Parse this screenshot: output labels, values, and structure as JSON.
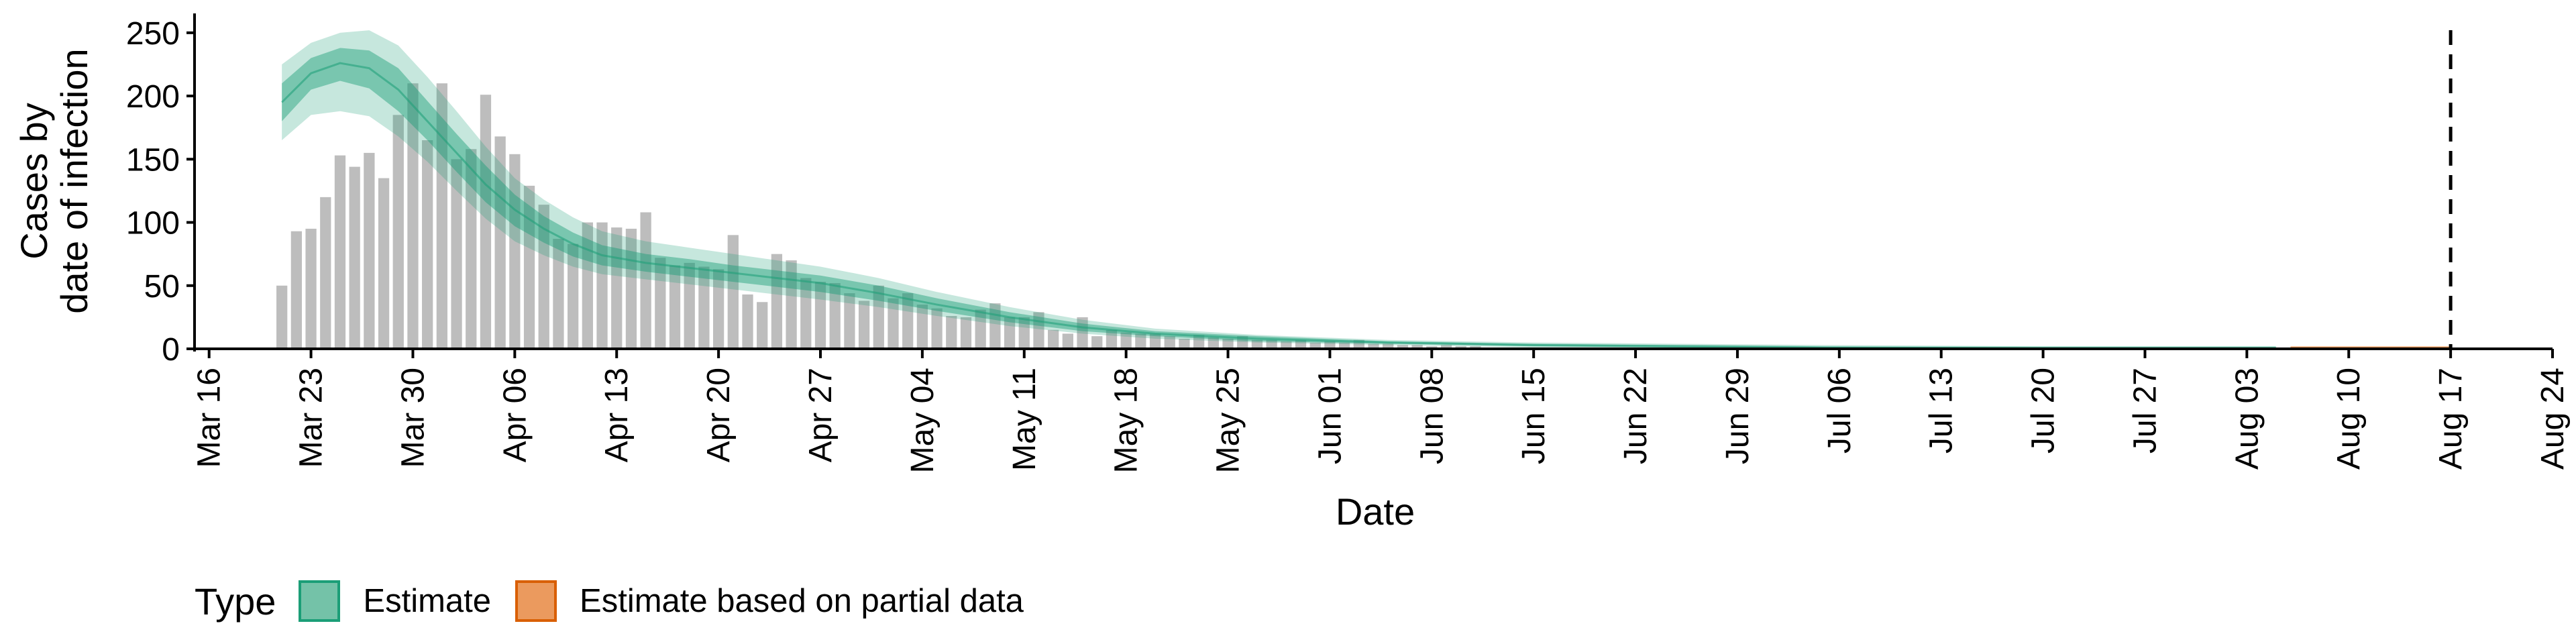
{
  "chart_data": {
    "type": "bar",
    "xlabel": "Date",
    "ylabel_lines": [
      "Cases by",
      "date of infection"
    ],
    "ylim": [
      0,
      260
    ],
    "yticks": [
      0,
      50,
      100,
      150,
      200,
      250
    ],
    "xlim": [
      "2020-03-15",
      "2020-08-24"
    ],
    "xticks": [
      {
        "date": "2020-03-16",
        "label": "Mar 16"
      },
      {
        "date": "2020-03-23",
        "label": "Mar 23"
      },
      {
        "date": "2020-03-30",
        "label": "Mar 30"
      },
      {
        "date": "2020-04-06",
        "label": "Apr 06"
      },
      {
        "date": "2020-04-13",
        "label": "Apr 13"
      },
      {
        "date": "2020-04-20",
        "label": "Apr 20"
      },
      {
        "date": "2020-04-27",
        "label": "Apr 27"
      },
      {
        "date": "2020-05-04",
        "label": "May 04"
      },
      {
        "date": "2020-05-11",
        "label": "May 11"
      },
      {
        "date": "2020-05-18",
        "label": "May 18"
      },
      {
        "date": "2020-05-25",
        "label": "May 25"
      },
      {
        "date": "2020-06-01",
        "label": "Jun 01"
      },
      {
        "date": "2020-06-08",
        "label": "Jun 08"
      },
      {
        "date": "2020-06-15",
        "label": "Jun 15"
      },
      {
        "date": "2020-06-22",
        "label": "Jun 22"
      },
      {
        "date": "2020-06-29",
        "label": "Jun 29"
      },
      {
        "date": "2020-07-06",
        "label": "Jul 06"
      },
      {
        "date": "2020-07-13",
        "label": "Jul 13"
      },
      {
        "date": "2020-07-20",
        "label": "Jul 20"
      },
      {
        "date": "2020-07-27",
        "label": "Jul 27"
      },
      {
        "date": "2020-08-03",
        "label": "Aug 03"
      },
      {
        "date": "2020-08-10",
        "label": "Aug 10"
      },
      {
        "date": "2020-08-17",
        "label": "Aug 17"
      },
      {
        "date": "2020-08-24",
        "label": "Aug 24"
      }
    ],
    "vline_date": "2020-08-17",
    "bars_start_date": "2020-03-21",
    "bar_values": [
      50,
      93,
      95,
      120,
      153,
      144,
      155,
      135,
      185,
      210,
      165,
      210,
      150,
      158,
      201,
      168,
      154,
      129,
      114,
      87,
      83,
      100,
      100,
      96,
      95,
      108,
      72,
      66,
      68,
      65,
      63,
      90,
      43,
      37,
      75,
      70,
      56,
      53,
      52,
      44,
      38,
      50,
      40,
      44,
      35,
      32,
      26,
      25,
      31,
      36,
      25,
      25,
      29,
      15,
      12,
      25,
      10,
      15,
      13,
      12,
      12,
      10,
      8,
      11,
      9,
      8,
      10,
      7,
      7,
      6,
      7,
      5,
      6,
      5,
      7,
      4,
      4,
      3,
      3,
      2,
      3,
      2,
      2,
      1,
      1,
      1,
      0,
      1,
      1,
      0
    ],
    "series": [
      {
        "name": "Estimate",
        "color": "#1b9e77",
        "dates": [
          "2020-03-21",
          "2020-03-23",
          "2020-03-25",
          "2020-03-27",
          "2020-03-29",
          "2020-03-31",
          "2020-04-02",
          "2020-04-04",
          "2020-04-06",
          "2020-04-08",
          "2020-04-10",
          "2020-04-12",
          "2020-04-15",
          "2020-04-18",
          "2020-04-21",
          "2020-04-24",
          "2020-04-27",
          "2020-05-01",
          "2020-05-05",
          "2020-05-10",
          "2020-05-15",
          "2020-05-20",
          "2020-05-27",
          "2020-06-05",
          "2020-06-15",
          "2020-06-25",
          "2020-07-05",
          "2020-07-20",
          "2020-08-05"
        ],
        "median": [
          195,
          218,
          226,
          222,
          205,
          180,
          155,
          130,
          110,
          95,
          83,
          74,
          68,
          64,
          60,
          56,
          52,
          44,
          35,
          25,
          17,
          12,
          8,
          5,
          3,
          2,
          1,
          1,
          1
        ],
        "lower50": [
          180,
          205,
          212,
          206,
          188,
          165,
          140,
          116,
          97,
          84,
          73,
          66,
          61,
          57,
          53,
          49,
          45,
          38,
          30,
          21,
          14,
          10,
          6,
          4,
          2,
          1,
          1,
          0,
          0
        ],
        "upper50": [
          210,
          230,
          238,
          236,
          222,
          196,
          170,
          145,
          122,
          105,
          92,
          82,
          75,
          71,
          66,
          62,
          58,
          50,
          40,
          29,
          20,
          14,
          10,
          6,
          4,
          3,
          2,
          1,
          1
        ],
        "lower90": [
          165,
          185,
          188,
          184,
          168,
          148,
          125,
          103,
          85,
          74,
          65,
          59,
          55,
          51,
          47,
          43,
          39,
          33,
          26,
          18,
          12,
          8,
          5,
          3,
          1,
          1,
          0,
          0,
          0
        ],
        "upper90": [
          225,
          242,
          250,
          252,
          240,
          215,
          188,
          160,
          135,
          118,
          104,
          93,
          85,
          80,
          75,
          70,
          65,
          56,
          45,
          33,
          23,
          16,
          11,
          7,
          5,
          4,
          3,
          2,
          2
        ]
      },
      {
        "name": "Estimate based on partial data",
        "color": "#d95f02",
        "dates": [
          "2020-08-06",
          "2020-08-10",
          "2020-08-14",
          "2020-08-17"
        ],
        "median": [
          1,
          1,
          1,
          1
        ],
        "lower90": [
          0,
          0,
          0,
          0
        ],
        "upper90": [
          2,
          2,
          2,
          2
        ]
      }
    ]
  },
  "legend": {
    "title": "Type",
    "items": [
      {
        "label": "Estimate",
        "color": "#1b9e77"
      },
      {
        "label": "Estimate based on partial data",
        "color": "#d95f02"
      }
    ]
  },
  "colors": {
    "bars": "#bdbdbd",
    "axis": "#000000",
    "vline": "#000000"
  }
}
